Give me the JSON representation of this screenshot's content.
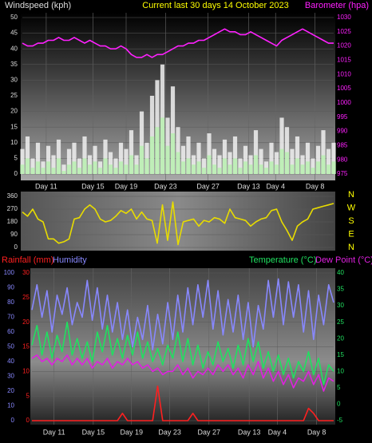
{
  "chart_data": [
    {
      "type": "combo",
      "title": "Current last 30 days 14 October 2023",
      "ylabel": "Windspeed (kph)",
      "y2label": "Barometer (hpa)",
      "x": [
        0,
        0.5,
        1,
        1.5,
        2,
        2.5,
        3,
        3.5,
        4,
        4.5,
        5,
        5.5,
        6,
        6.5,
        7,
        7.5,
        8,
        8.5,
        9,
        9.5,
        10,
        10.5,
        11,
        11.5,
        12,
        12.5,
        13,
        13.5,
        14,
        14.5,
        15,
        15.5,
        16,
        16.5,
        17,
        17.5,
        18,
        18.5,
        19,
        19.5,
        20,
        20.5,
        21,
        21.5,
        22,
        22.5,
        23,
        23.5,
        24,
        24.5,
        25,
        25.5,
        26,
        26.5,
        27,
        27.5,
        28,
        28.5,
        29,
        29.5,
        30
      ],
      "xlim": [
        0,
        30
      ],
      "xticks": [
        {
          "value": 2.3,
          "label": "Day 11"
        },
        {
          "value": 6.8,
          "label": "Day 15"
        },
        {
          "value": 10,
          "label": "Day 19"
        },
        {
          "value": 13.8,
          "label": "Day 23"
        },
        {
          "value": 17.9,
          "label": "Day 27"
        },
        {
          "value": 21.8,
          "label": "Day 13"
        },
        {
          "value": 24.4,
          "label": "Day 4"
        },
        {
          "value": 28.2,
          "label": "Day 8"
        }
      ],
      "ylim": [
        0,
        50
      ],
      "yticks": [
        0,
        5,
        10,
        15,
        20,
        25,
        30,
        35,
        40,
        45,
        50
      ],
      "y2lim": [
        975,
        1030
      ],
      "y2ticks": [
        975,
        980,
        985,
        990,
        995,
        1000,
        1005,
        1010,
        1015,
        1020,
        1025,
        1030
      ],
      "grid": true,
      "series": [
        {
          "type": "bar",
          "color": "#f0f0f0",
          "values": [
            8,
            12,
            5,
            10,
            4,
            9,
            6,
            11,
            3,
            8,
            10,
            5,
            12,
            6,
            9,
            4,
            11,
            7,
            5,
            10,
            8,
            14,
            6,
            20,
            10,
            25,
            30,
            35,
            18,
            28,
            15,
            9,
            12,
            6,
            10,
            5,
            13,
            8,
            6,
            11,
            7,
            12,
            5,
            9,
            6,
            14,
            8,
            4,
            10,
            7,
            18,
            15,
            8,
            12,
            6,
            10,
            5,
            9,
            14,
            8,
            10
          ]
        },
        {
          "type": "bar",
          "color": "#b8f0b0",
          "values": [
            3,
            5,
            2,
            4,
            2,
            4,
            2,
            5,
            1,
            3,
            4,
            2,
            5,
            3,
            4,
            2,
            5,
            3,
            2,
            4,
            3,
            6,
            3,
            9,
            5,
            12,
            15,
            18,
            9,
            13,
            7,
            4,
            5,
            3,
            4,
            2,
            6,
            3,
            2,
            5,
            3,
            5,
            2,
            4,
            3,
            6,
            3,
            2,
            4,
            3,
            8,
            7,
            3,
            5,
            3,
            4,
            2,
            4,
            6,
            3,
            4
          ]
        },
        {
          "type": "line",
          "axis": "y2",
          "color": "#ff20ff",
          "values": [
            1021,
            1020,
            1020,
            1021,
            1021,
            1022,
            1022,
            1023,
            1022,
            1022,
            1023,
            1022,
            1021,
            1022,
            1021,
            1020,
            1020,
            1019,
            1019,
            1020,
            1019,
            1017,
            1016,
            1016,
            1017,
            1016,
            1017,
            1017,
            1018,
            1019,
            1020,
            1020,
            1021,
            1021,
            1022,
            1022,
            1023,
            1024,
            1025,
            1026,
            1025,
            1025,
            1024,
            1024,
            1025,
            1024,
            1023,
            1022,
            1021,
            1020,
            1022,
            1023,
            1024,
            1025,
            1026,
            1025,
            1024,
            1023,
            1022,
            1021,
            1021
          ]
        }
      ]
    },
    {
      "type": "line",
      "compass": [
        "N",
        "W",
        "S",
        "E",
        "N"
      ],
      "x": [
        0,
        0.5,
        1,
        1.5,
        2,
        2.5,
        3,
        3.5,
        4,
        4.5,
        5,
        5.5,
        6,
        6.5,
        7,
        7.5,
        8,
        8.5,
        9,
        9.5,
        10,
        10.5,
        11,
        11.5,
        12,
        12.5,
        13,
        13.5,
        14,
        14.5,
        15,
        15.5,
        16,
        16.5,
        17,
        17.5,
        18,
        18.5,
        19,
        19.5,
        20,
        20.5,
        21,
        21.5,
        22,
        22.5,
        23,
        23.5,
        24,
        24.5,
        25,
        25.5,
        26,
        26.5,
        27,
        27.5,
        28,
        28.5,
        29,
        29.5,
        30
      ],
      "xlim": [
        0,
        30
      ],
      "ylim": [
        0,
        360
      ],
      "yticks": [
        0,
        90,
        180,
        270,
        360
      ],
      "grid": true,
      "series": [
        {
          "type": "line",
          "color": "#e8dc00",
          "values": [
            250,
            220,
            270,
            200,
            180,
            60,
            60,
            30,
            40,
            60,
            200,
            210,
            270,
            300,
            270,
            200,
            180,
            190,
            220,
            260,
            240,
            270,
            200,
            250,
            200,
            190,
            30,
            300,
            50,
            320,
            20,
            180,
            190,
            200,
            150,
            190,
            180,
            210,
            200,
            170,
            270,
            210,
            200,
            190,
            150,
            180,
            200,
            210,
            260,
            270,
            180,
            120,
            50,
            150,
            180,
            200,
            270,
            280,
            290,
            300,
            310
          ]
        }
      ]
    },
    {
      "type": "line",
      "x": [
        0,
        0.5,
        1,
        1.5,
        2,
        2.5,
        3,
        3.5,
        4,
        4.5,
        5,
        5.5,
        6,
        6.5,
        7,
        7.5,
        8,
        8.5,
        9,
        9.5,
        10,
        10.5,
        11,
        11.5,
        12,
        12.5,
        13,
        13.5,
        14,
        14.5,
        15,
        15.5,
        16,
        16.5,
        17,
        17.5,
        18,
        18.5,
        19,
        19.5,
        20,
        20.5,
        21,
        21.5,
        22,
        22.5,
        23,
        23.5,
        24,
        24.5,
        25,
        25.5,
        26,
        26.5,
        27,
        27.5,
        28,
        28.5,
        29,
        29.5,
        30
      ],
      "xlim": [
        0,
        30
      ],
      "xticks": [
        {
          "value": 2.2,
          "label": "Day 11"
        },
        {
          "value": 6.1,
          "label": "Day 15"
        },
        {
          "value": 9.9,
          "label": "Day 19"
        },
        {
          "value": 13.7,
          "label": "Day 23"
        },
        {
          "value": 17.6,
          "label": "Day 27"
        },
        {
          "value": 21.6,
          "label": "Day 13"
        },
        {
          "value": 24.4,
          "label": "Day 4"
        },
        {
          "value": 28.3,
          "label": "Day 8"
        }
      ],
      "ylim": [
        0,
        30
      ],
      "yticks": [
        0,
        5,
        10,
        15,
        20,
        25,
        30
      ],
      "y3lim": [
        0,
        100
      ],
      "y3ticks": [
        0,
        10,
        20,
        30,
        40,
        50,
        60,
        70,
        80,
        90,
        100
      ],
      "y2lim": [
        -5,
        40
      ],
      "y2ticks": [
        -5,
        0,
        5,
        10,
        15,
        20,
        25,
        30,
        35,
        40
      ],
      "grid": true,
      "series": [
        {
          "name": "Rainfall (mm)",
          "type": "line",
          "color": "#ff2020",
          "values": [
            0,
            0,
            0,
            0,
            0,
            0,
            0,
            0,
            0,
            0,
            0,
            0,
            0,
            0,
            0,
            0,
            0,
            0,
            1.5,
            0,
            0,
            0,
            0,
            0,
            0,
            7,
            0,
            0,
            0,
            0,
            0,
            0,
            1.5,
            0,
            0,
            0,
            0,
            0,
            0,
            0,
            0,
            0,
            0,
            0,
            0,
            0,
            0,
            0,
            0,
            0,
            0,
            0,
            0,
            0,
            0,
            2.5,
            1.5,
            0,
            0,
            0,
            0
          ]
        },
        {
          "name": "Humidity",
          "type": "line",
          "axis": "y3",
          "color": "#8888ff",
          "values": [
            75,
            92,
            70,
            88,
            60,
            85,
            72,
            90,
            65,
            80,
            70,
            95,
            68,
            90,
            62,
            85,
            60,
            80,
            55,
            75,
            50,
            70,
            55,
            78,
            48,
            72,
            52,
            80,
            55,
            85,
            60,
            90,
            65,
            92,
            70,
            95,
            62,
            88,
            58,
            82,
            60,
            85,
            55,
            80,
            50,
            78,
            62,
            95,
            70,
            96,
            65,
            94,
            70,
            92,
            60,
            88,
            55,
            85,
            65,
            92,
            80
          ]
        },
        {
          "name": "Temperature (°C)",
          "type": "line",
          "axis": "y2",
          "color": "#20e060",
          "values": [
            18,
            24,
            15,
            22,
            14,
            21,
            16,
            25,
            15,
            20,
            14,
            19,
            13,
            22,
            16,
            24,
            15,
            20,
            14,
            21,
            15,
            22,
            14,
            19,
            13,
            17,
            12,
            18,
            14,
            22,
            13,
            20,
            12,
            18,
            11,
            16,
            12,
            19,
            13,
            17,
            11,
            18,
            12,
            20,
            13,
            19,
            11,
            16,
            10,
            15,
            9,
            14,
            8,
            13,
            10,
            16,
            9,
            14,
            6,
            12,
            10
          ]
        },
        {
          "name": "Dew Point (°C)",
          "type": "line",
          "axis": "y2",
          "color": "#e020e0",
          "values": [
            14,
            15,
            13,
            14,
            12,
            14,
            13,
            15,
            12,
            14,
            12,
            14,
            11,
            13,
            12,
            14,
            11,
            13,
            12,
            14,
            12,
            13,
            11,
            12,
            10,
            11,
            9,
            10,
            10,
            12,
            9,
            11,
            8,
            10,
            9,
            11,
            9,
            12,
            10,
            12,
            9,
            11,
            8,
            12,
            9,
            13,
            8,
            11,
            7,
            10,
            6,
            9,
            5,
            8,
            7,
            10,
            6,
            9,
            4,
            8,
            7
          ]
        }
      ]
    }
  ]
}
